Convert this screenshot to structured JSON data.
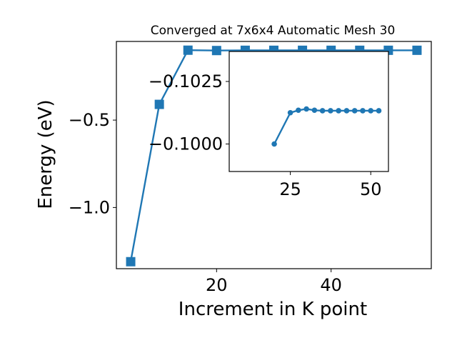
{
  "chart_data": [
    {
      "type": "line",
      "title": "Converged at 7x6x4 Automatic Mesh 30",
      "xlabel": "Increment in K point",
      "ylabel": "Energy (eV)",
      "xlim": [
        2.5,
        57.5
      ],
      "ylim": [
        -1.35,
        -0.05
      ],
      "xticks": [
        20,
        40
      ],
      "xtick_labels": [
        "20",
        "40"
      ],
      "yticks": [
        -0.5,
        -1.0
      ],
      "ytick_labels": [
        "−0.5",
        "−1.0"
      ],
      "grid": false,
      "color": "#1f77b4",
      "marker": "square",
      "series": [
        {
          "x": [
            5,
            10,
            15,
            20,
            25,
            30,
            35,
            40,
            45,
            50,
            55
          ],
          "y": [
            -1.31,
            -0.41,
            -0.1,
            -0.102,
            -0.1005,
            -0.1005,
            -0.1005,
            -0.1005,
            -0.1005,
            -0.1005,
            -0.1005
          ]
        }
      ]
    },
    {
      "type": "line",
      "title": "",
      "xlabel": "",
      "ylabel": "",
      "inset": true,
      "xlim": [
        6,
        55.5
      ],
      "ylim": [
        -0.0989,
        -0.1037
      ],
      "xticks": [
        25,
        50
      ],
      "xtick_labels": [
        "25",
        "50"
      ],
      "yticks": [
        -0.1025,
        -0.1
      ],
      "ytick_labels": [
        "−0.1025",
        "−0.1000"
      ],
      "grid": false,
      "color": "#1f77b4",
      "marker": "circle",
      "series": [
        {
          "x": [
            20,
            25,
            27.5,
            30,
            32.5,
            35,
            37.5,
            40,
            42.5,
            45,
            47.5,
            50,
            52.5
          ],
          "y": [
            -0.1,
            -0.10125,
            -0.10135,
            -0.1014,
            -0.10135,
            -0.10133,
            -0.10133,
            -0.10133,
            -0.10133,
            -0.10133,
            -0.10133,
            -0.10133,
            -0.10133
          ]
        }
      ]
    }
  ]
}
